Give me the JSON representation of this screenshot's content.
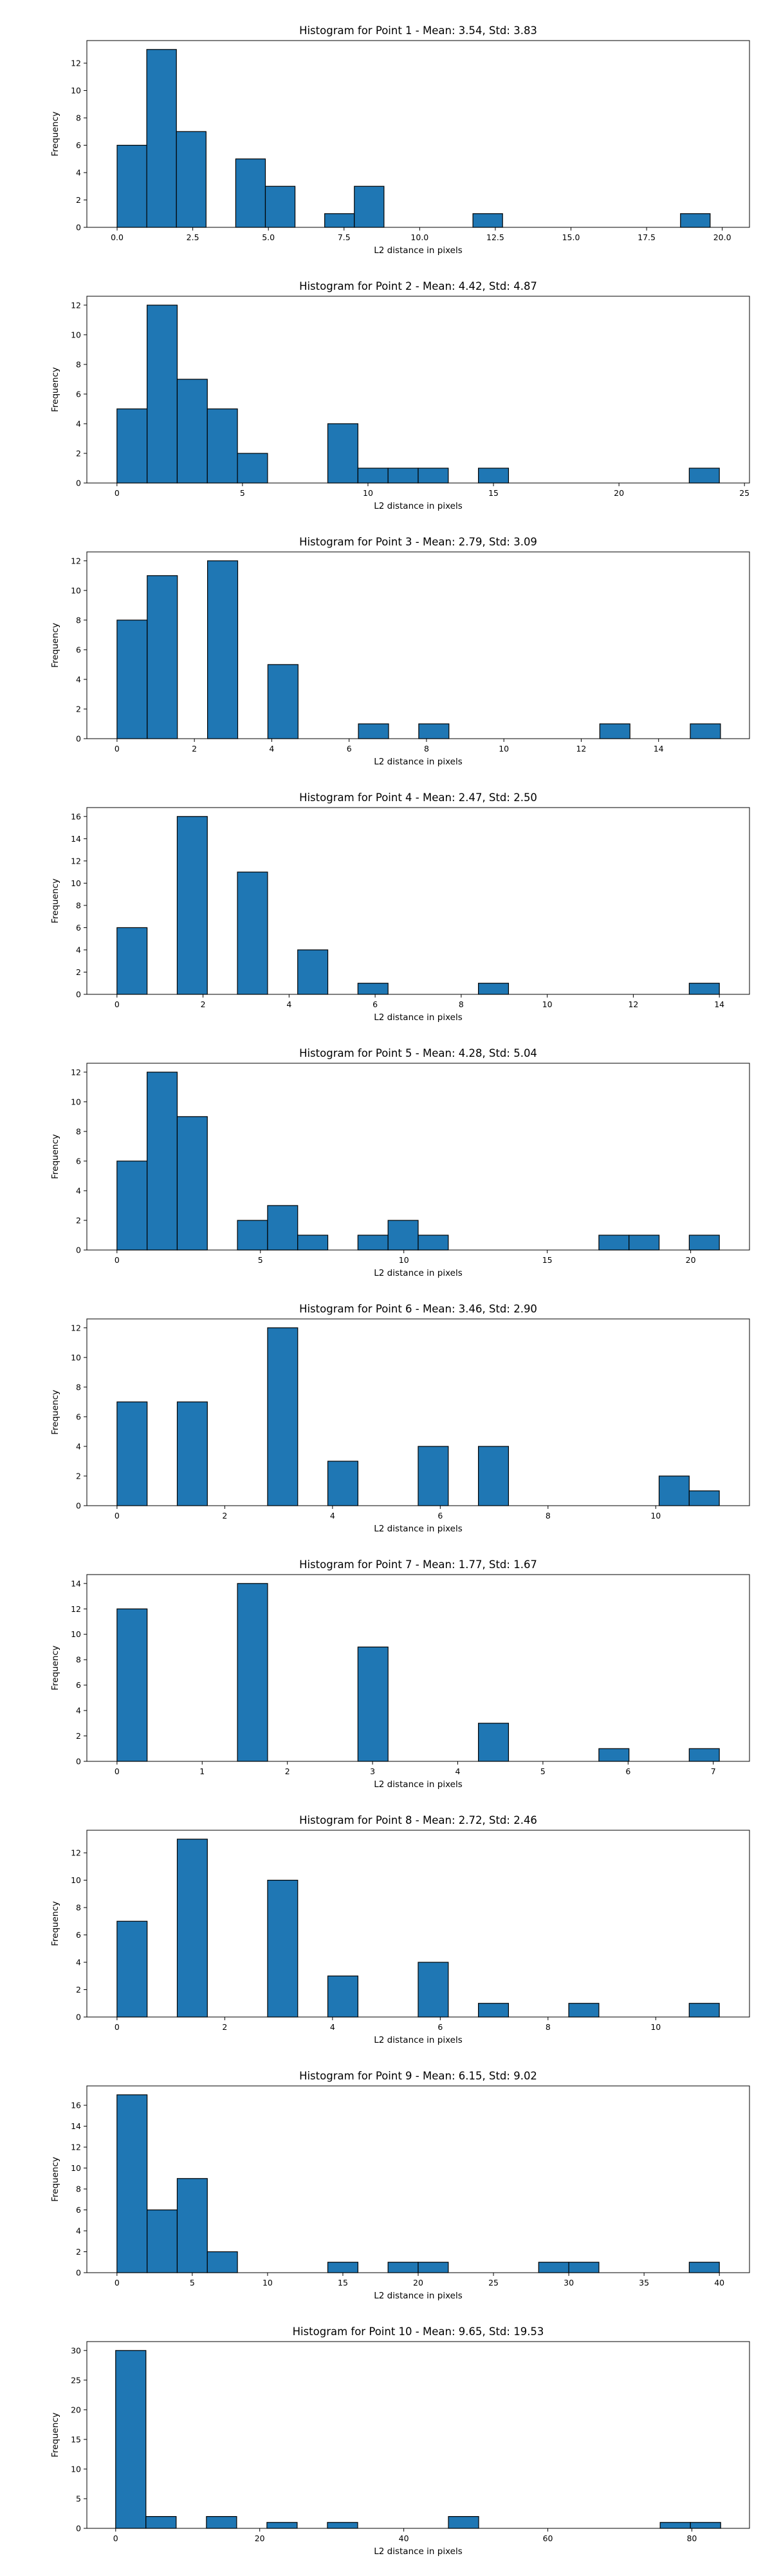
{
  "colors": {
    "bar": "#1f77b4",
    "edge": "#000000",
    "axes": "#000000",
    "background": "#ffffff"
  },
  "chart_data": [
    {
      "type": "bar",
      "title": "Histogram for Point 1 - Mean: 3.54, Std: 3.83",
      "xlabel": "L2 distance in pixels",
      "ylabel": "Frequency",
      "xlim": [
        -1.0,
        20.9
      ],
      "ylim": [
        0,
        13.65
      ],
      "xticks": [
        0.0,
        2.5,
        5.0,
        7.5,
        10.0,
        12.5,
        15.0,
        17.5,
        20.0
      ],
      "xtick_labels": [
        "0.0",
        "2.5",
        "5.0",
        "7.5",
        "10.0",
        "12.5",
        "15.0",
        "17.5",
        "20.0"
      ],
      "yticks": [
        0,
        2,
        4,
        6,
        8,
        10,
        12
      ],
      "bin_edges": [
        0.0,
        0.98,
        1.96,
        2.94,
        3.92,
        4.9,
        5.88,
        6.86,
        7.84,
        8.82,
        9.8,
        10.78,
        11.76,
        12.74,
        13.72,
        14.7,
        15.68,
        16.66,
        17.64,
        18.62,
        19.6
      ],
      "values": [
        6,
        13,
        7,
        0,
        5,
        3,
        0,
        1,
        3,
        0,
        0,
        0,
        1,
        0,
        0,
        0,
        0,
        0,
        0,
        1
      ],
      "grid": false
    },
    {
      "type": "bar",
      "title": "Histogram for Point 2 - Mean: 4.42, Std: 4.87",
      "xlabel": "L2 distance in pixels",
      "ylabel": "Frequency",
      "xlim": [
        -1.2,
        25.2
      ],
      "ylim": [
        0,
        12.6
      ],
      "xticks": [
        0,
        5,
        10,
        15,
        20,
        25
      ],
      "xtick_labels": [
        "0",
        "5",
        "10",
        "15",
        "20",
        "25"
      ],
      "yticks": [
        0,
        2,
        4,
        6,
        8,
        10,
        12
      ],
      "bin_edges": [
        0.0,
        1.2,
        2.4,
        3.6,
        4.8,
        6.0,
        7.2,
        8.4,
        9.6,
        10.8,
        12.0,
        13.2,
        14.4,
        15.6,
        16.8,
        18.0,
        19.2,
        20.4,
        21.6,
        22.8,
        24.0
      ],
      "values": [
        5,
        12,
        7,
        5,
        2,
        0,
        0,
        4,
        1,
        1,
        1,
        0,
        1,
        0,
        0,
        0,
        0,
        0,
        0,
        1
      ],
      "grid": false
    },
    {
      "type": "bar",
      "title": "Histogram for Point 3 - Mean: 2.79, Std: 3.09",
      "xlabel": "L2 distance in pixels",
      "ylabel": "Frequency",
      "xlim": [
        -0.78,
        16.35
      ],
      "ylim": [
        0,
        12.6
      ],
      "xticks": [
        0,
        2,
        4,
        6,
        8,
        10,
        12,
        14
      ],
      "xtick_labels": [
        "0",
        "2",
        "4",
        "6",
        "8",
        "10",
        "12",
        "14"
      ],
      "yticks": [
        0,
        2,
        4,
        6,
        8,
        10,
        12
      ],
      "bin_edges": [
        0.0,
        0.78,
        1.56,
        2.34,
        3.12,
        3.9,
        4.68,
        5.46,
        6.24,
        7.02,
        7.8,
        8.58,
        9.36,
        10.14,
        10.92,
        11.7,
        12.48,
        13.26,
        14.04,
        14.82,
        15.6
      ],
      "values": [
        8,
        11,
        0,
        12,
        0,
        5,
        0,
        0,
        1,
        0,
        1,
        0,
        0,
        0,
        0,
        0,
        1,
        0,
        0,
        1
      ],
      "grid": false
    },
    {
      "type": "bar",
      "title": "Histogram for Point 4 - Mean: 2.47, Std: 2.50",
      "xlabel": "L2 distance in pixels",
      "ylabel": "Frequency",
      "xlim": [
        -0.7,
        14.7
      ],
      "ylim": [
        0,
        16.8
      ],
      "xticks": [
        0,
        2,
        4,
        6,
        8,
        10,
        12,
        14
      ],
      "xtick_labels": [
        "0",
        "2",
        "4",
        "6",
        "8",
        "10",
        "12",
        "14"
      ],
      "yticks": [
        0,
        2,
        4,
        6,
        8,
        10,
        12,
        14,
        16
      ],
      "bin_edges": [
        0.0,
        0.7,
        1.4,
        2.1,
        2.8,
        3.5,
        4.2,
        4.9,
        5.6,
        6.3,
        7.0,
        7.7,
        8.4,
        9.1,
        9.8,
        10.5,
        11.2,
        11.9,
        12.6,
        13.3,
        14.0
      ],
      "values": [
        6,
        0,
        16,
        0,
        11,
        0,
        4,
        0,
        1,
        0,
        0,
        0,
        1,
        0,
        0,
        0,
        0,
        0,
        0,
        1
      ],
      "grid": false
    },
    {
      "type": "bar",
      "title": "Histogram for Point 5 - Mean: 4.28, Std: 5.04",
      "xlabel": "L2 distance in pixels",
      "ylabel": "Frequency",
      "xlim": [
        -1.05,
        22.05
      ],
      "ylim": [
        0,
        12.6
      ],
      "xticks": [
        0,
        5,
        10,
        15,
        20
      ],
      "xtick_labels": [
        "0",
        "5",
        "10",
        "15",
        "20"
      ],
      "yticks": [
        0,
        2,
        4,
        6,
        8,
        10,
        12
      ],
      "bin_edges": [
        0.0,
        1.05,
        2.1,
        3.15,
        4.2,
        5.25,
        6.3,
        7.35,
        8.4,
        9.45,
        10.5,
        11.55,
        12.6,
        13.65,
        14.7,
        15.75,
        16.8,
        17.85,
        18.9,
        19.95,
        21.0
      ],
      "values": [
        6,
        12,
        9,
        0,
        2,
        3,
        1,
        0,
        1,
        2,
        1,
        0,
        0,
        0,
        0,
        0,
        1,
        1,
        0,
        1
      ],
      "grid": false
    },
    {
      "type": "bar",
      "title": "Histogram for Point 6 - Mean: 3.46, Std: 2.90",
      "xlabel": "L2 distance in pixels",
      "ylabel": "Frequency",
      "xlim": [
        -0.56,
        11.74
      ],
      "ylim": [
        0,
        12.6
      ],
      "xticks": [
        0,
        2,
        4,
        6,
        8,
        10
      ],
      "xtick_labels": [
        "0",
        "2",
        "4",
        "6",
        "8",
        "10"
      ],
      "yticks": [
        0,
        2,
        4,
        6,
        8,
        10,
        12
      ],
      "bin_edges": [
        0.0,
        0.559,
        1.118,
        1.677,
        2.236,
        2.795,
        3.354,
        3.913,
        4.472,
        5.031,
        5.59,
        6.149,
        6.708,
        7.267,
        7.826,
        8.385,
        8.944,
        9.503,
        10.062,
        10.621,
        11.18
      ],
      "values": [
        7,
        0,
        7,
        0,
        0,
        12,
        0,
        3,
        0,
        0,
        4,
        0,
        4,
        0,
        0,
        0,
        0,
        0,
        2,
        1
      ],
      "grid": false
    },
    {
      "type": "bar",
      "title": "Histogram for Point 7 - Mean: 1.77, Std: 1.67",
      "xlabel": "L2 distance in pixels",
      "ylabel": "Frequency",
      "xlim": [
        -0.354,
        7.425
      ],
      "ylim": [
        0,
        14.7
      ],
      "xticks": [
        0,
        1,
        2,
        3,
        4,
        5,
        6,
        7
      ],
      "xtick_labels": [
        "0",
        "1",
        "2",
        "3",
        "4",
        "5",
        "6",
        "7"
      ],
      "yticks": [
        0,
        2,
        4,
        6,
        8,
        10,
        12,
        14
      ],
      "bin_edges": [
        0.0,
        0.3536,
        0.7071,
        1.0607,
        1.4142,
        1.7678,
        2.1213,
        2.4749,
        2.8284,
        3.182,
        3.5355,
        3.8891,
        4.2426,
        4.5962,
        4.9497,
        5.3033,
        5.6569,
        6.0104,
        6.364,
        6.7175,
        7.0711
      ],
      "values": [
        12,
        0,
        0,
        0,
        14,
        0,
        0,
        0,
        9,
        0,
        0,
        0,
        3,
        0,
        0,
        0,
        1,
        0,
        0,
        1
      ],
      "grid": false
    },
    {
      "type": "bar",
      "title": "Histogram for Point 8 - Mean: 2.72, Std: 2.46",
      "xlabel": "L2 distance in pixels",
      "ylabel": "Frequency",
      "xlim": [
        -0.56,
        11.74
      ],
      "ylim": [
        0,
        13.65
      ],
      "xticks": [
        0,
        2,
        4,
        6,
        8,
        10
      ],
      "xtick_labels": [
        "0",
        "2",
        "4",
        "6",
        "8",
        "10"
      ],
      "yticks": [
        0,
        2,
        4,
        6,
        8,
        10,
        12
      ],
      "bin_edges": [
        0.0,
        0.559,
        1.118,
        1.677,
        2.236,
        2.795,
        3.354,
        3.913,
        4.472,
        5.031,
        5.59,
        6.149,
        6.708,
        7.267,
        7.826,
        8.385,
        8.944,
        9.503,
        10.062,
        10.621,
        11.18
      ],
      "values": [
        7,
        0,
        13,
        0,
        0,
        10,
        0,
        3,
        0,
        0,
        4,
        0,
        1,
        0,
        0,
        1,
        0,
        0,
        0,
        1
      ],
      "grid": false
    },
    {
      "type": "bar",
      "title": "Histogram for Point 9 - Mean: 6.15, Std: 9.02",
      "xlabel": "L2 distance in pixels",
      "ylabel": "Frequency",
      "xlim": [
        -2.0,
        42.0
      ],
      "ylim": [
        0,
        17.85
      ],
      "xticks": [
        0,
        5,
        10,
        15,
        20,
        25,
        30,
        35,
        40
      ],
      "xtick_labels": [
        "0",
        "5",
        "10",
        "15",
        "20",
        "25",
        "30",
        "35",
        "40"
      ],
      "yticks": [
        0,
        2,
        4,
        6,
        8,
        10,
        12,
        14,
        16
      ],
      "bin_edges": [
        0.0,
        2.0,
        4.0,
        6.0,
        8.0,
        10.0,
        12.0,
        14.0,
        16.0,
        18.0,
        20.0,
        22.0,
        24.0,
        26.0,
        28.0,
        30.0,
        32.0,
        34.0,
        36.0,
        38.0,
        40.0
      ],
      "values": [
        17,
        6,
        9,
        2,
        0,
        0,
        0,
        1,
        0,
        1,
        1,
        0,
        0,
        0,
        1,
        1,
        0,
        0,
        0,
        1
      ],
      "grid": false
    },
    {
      "type": "bar",
      "title": "Histogram for Point 10 - Mean: 9.65, Std: 19.53",
      "xlabel": "L2 distance in pixels",
      "ylabel": "Frequency",
      "xlim": [
        -4.0,
        88.0
      ],
      "ylim": [
        0,
        31.5
      ],
      "xticks": [
        0,
        20,
        40,
        60,
        80
      ],
      "xtick_labels": [
        "0",
        "20",
        "40",
        "60",
        "80"
      ],
      "yticks": [
        0,
        5,
        10,
        15,
        20,
        25,
        30
      ],
      "bin_edges": [
        0.0,
        4.2,
        8.4,
        12.6,
        16.8,
        21.0,
        25.2,
        29.4,
        33.6,
        37.8,
        42.0,
        46.2,
        50.4,
        54.6,
        58.8,
        63.0,
        67.2,
        71.4,
        75.6,
        79.8,
        84.0
      ],
      "values": [
        30,
        2,
        0,
        2,
        0,
        1,
        0,
        1,
        0,
        0,
        0,
        2,
        0,
        0,
        0,
        0,
        0,
        0,
        1,
        1
      ],
      "grid": false
    }
  ]
}
